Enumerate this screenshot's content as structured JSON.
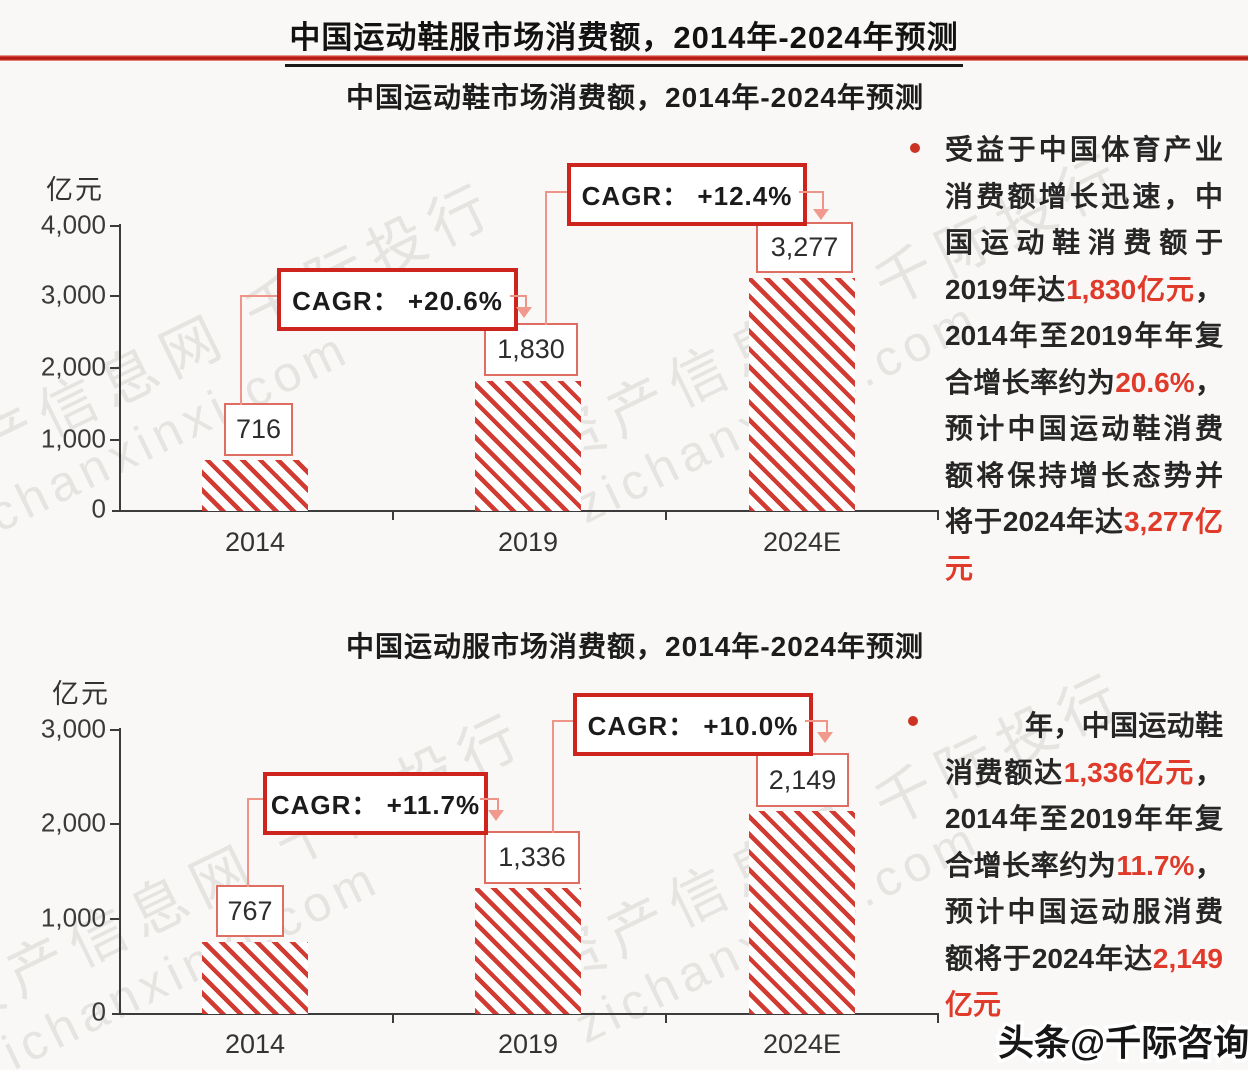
{
  "page": {
    "main_title": "中国运动鞋服市场消费额，2014年-2024年预测",
    "byline_watermark": "头条@千际咨询",
    "watermark_line1": "资产信息网 千际投行",
    "watermark_line2": "zichanxinxi.com",
    "accent_red": "#cd251d",
    "hatch_red": "#d23b32",
    "note_red": "#e03a2b"
  },
  "chart_data": [
    {
      "type": "bar",
      "title": "中国运动鞋市场消费额，2014年-2024年预测",
      "ylabel": "亿元",
      "xlabel": "",
      "categories": [
        "2014",
        "2019",
        "2024E"
      ],
      "values": [
        716,
        1830,
        3277
      ],
      "value_labels": [
        "716",
        "1,830",
        "3,277"
      ],
      "ylim": [
        0,
        4000
      ],
      "yticks": [
        "4,000",
        "3,000",
        "2,000",
        "1,000",
        "0"
      ],
      "grid": false,
      "legend": "none",
      "bar_style": "red diagonal hatch, white fill",
      "annotations": [
        {
          "label": "CAGR： +20.6%",
          "from": "2014",
          "to": "2019"
        },
        {
          "label": "CAGR： +12.4%",
          "from": "2019",
          "to": "2024E"
        }
      ]
    },
    {
      "type": "bar",
      "title": "中国运动服市场消费额，2014年-2024年预测",
      "ylabel": "亿元",
      "xlabel": "",
      "categories": [
        "2014",
        "2019",
        "2024E"
      ],
      "values": [
        767,
        1336,
        2149
      ],
      "value_labels": [
        "767",
        "1,336",
        "2,149"
      ],
      "ylim": [
        0,
        3000
      ],
      "yticks": [
        "3,000",
        "2,000",
        "1,000",
        "0"
      ],
      "grid": false,
      "legend": "none",
      "bar_style": "red diagonal hatch, white fill",
      "annotations": [
        {
          "label": "CAGR： +11.7%",
          "from": "2014",
          "to": "2019"
        },
        {
          "label": "CAGR： +10.0%",
          "from": "2019",
          "to": "2024E"
        }
      ]
    }
  ],
  "notes": {
    "bullet1": {
      "segments": [
        {
          "text": "受益于中国体育产业消费额增长迅速，中国运动鞋消费额于2019年达",
          "red": false
        },
        {
          "text": "1,830亿元",
          "red": true
        },
        {
          "text": "，2014年至2019年年复合增长率约为",
          "red": false
        },
        {
          "text": "20.6%",
          "red": true
        },
        {
          "text": "，预计中国运动鞋消费额将保持增长态势并将于2024年达",
          "red": false
        },
        {
          "text": "3,277亿元",
          "red": true
        }
      ]
    },
    "bullet2": {
      "segments": [
        {
          "text": "年，中国运动鞋消费额达",
          "red": false
        },
        {
          "text": "1,336亿元",
          "red": true
        },
        {
          "text": "，2014年至2019年年复合增长率约为",
          "red": false
        },
        {
          "text": "11.7%",
          "red": true
        },
        {
          "text": "，预计中国运动服消费额将于2024年达",
          "red": false
        },
        {
          "text": "2,149亿元",
          "red": true
        }
      ]
    }
  }
}
